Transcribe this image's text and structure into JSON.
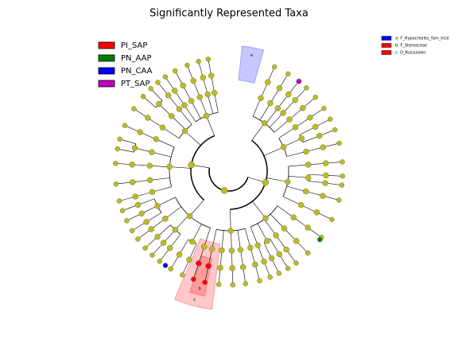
{
  "title": "Significantly Represented Taxa",
  "legend": [
    {
      "name": "PI_SAP",
      "color": "#ff0000"
    },
    {
      "name": "PN_AAP",
      "color": "#008000"
    },
    {
      "name": "PN_CAA",
      "color": "#0000ff"
    },
    {
      "name": "PT_SAP",
      "color": "#bf00bf"
    }
  ],
  "clades": [
    {
      "marker": "a",
      "label": "a: F_Hypocreales_fam_Ince",
      "color": "#0000ff"
    },
    {
      "marker": "b",
      "label": "b: F_Stereaceae",
      "color": "#ff0000"
    },
    {
      "marker": "c",
      "label": "c: O_Russulales",
      "color": "#ff0000"
    }
  ]
}
